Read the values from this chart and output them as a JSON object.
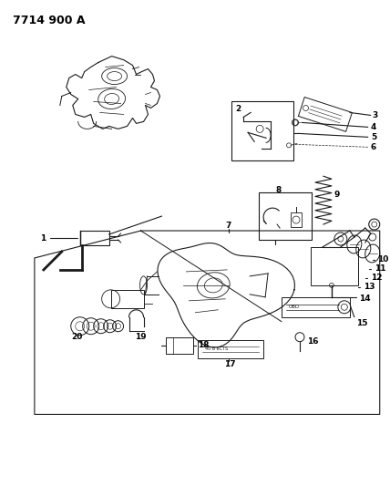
{
  "title": "7714 900 A",
  "background_color": "#ffffff",
  "line_color": "#1a1a1a",
  "title_fontsize": 9,
  "fig_width": 4.28,
  "fig_height": 5.33,
  "dpi": 100,
  "gray": "#888888",
  "darkgray": "#444444"
}
